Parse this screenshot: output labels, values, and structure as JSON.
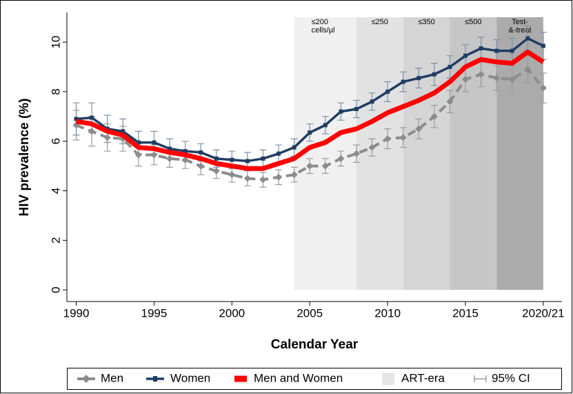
{
  "chart_data": {
    "type": "line",
    "x_label": "Calendar Year",
    "y_label": "HIV prevalence (%)",
    "x": [
      1990,
      1991,
      1992,
      1993,
      1994,
      1995,
      1996,
      1997,
      1998,
      1999,
      2000,
      2001,
      2002,
      2003,
      2004,
      2005,
      2006,
      2007,
      2008,
      2009,
      2010,
      2011,
      2012,
      2013,
      2014,
      2015,
      2016,
      2017,
      2018,
      2019,
      2020
    ],
    "series": [
      {
        "name": "Men",
        "color": "#8c8c8c",
        "style": "dashed",
        "values": [
          6.65,
          6.4,
          6.15,
          6.1,
          5.45,
          5.45,
          5.3,
          5.25,
          5.0,
          4.8,
          4.65,
          4.5,
          4.45,
          4.55,
          4.65,
          5.0,
          5.0,
          5.3,
          5.5,
          5.75,
          6.1,
          6.15,
          6.5,
          7.0,
          7.6,
          8.5,
          8.7,
          8.55,
          8.5,
          8.9,
          8.15
        ],
        "errors": [
          0.6,
          0.6,
          0.55,
          0.5,
          0.45,
          0.4,
          0.35,
          0.35,
          0.35,
          0.3,
          0.3,
          0.3,
          0.3,
          0.3,
          0.3,
          0.3,
          0.3,
          0.3,
          0.35,
          0.35,
          0.4,
          0.4,
          0.4,
          0.45,
          0.45,
          0.5,
          0.5,
          0.5,
          0.55,
          0.55,
          0.6
        ]
      },
      {
        "name": "Women",
        "color": "#1f3d63",
        "style": "solid",
        "values": [
          6.9,
          6.95,
          6.5,
          6.4,
          5.95,
          5.95,
          5.7,
          5.6,
          5.55,
          5.3,
          5.25,
          5.2,
          5.3,
          5.5,
          5.75,
          6.35,
          6.65,
          7.2,
          7.3,
          7.6,
          8.0,
          8.4,
          8.55,
          8.7,
          9.0,
          9.45,
          9.75,
          9.65,
          9.65,
          10.15,
          9.85
        ],
        "errors": [
          0.65,
          0.6,
          0.55,
          0.5,
          0.45,
          0.45,
          0.4,
          0.4,
          0.35,
          0.35,
          0.35,
          0.35,
          0.35,
          0.35,
          0.35,
          0.35,
          0.35,
          0.35,
          0.35,
          0.35,
          0.4,
          0.4,
          0.4,
          0.45,
          0.45,
          0.45,
          0.45,
          0.45,
          0.5,
          0.5,
          0.55
        ]
      },
      {
        "name": "Men and Women",
        "color": "#ff0000",
        "style": "thick",
        "values": [
          6.8,
          6.7,
          6.4,
          6.25,
          5.75,
          5.7,
          5.55,
          5.45,
          5.3,
          5.1,
          5.0,
          4.9,
          4.9,
          5.1,
          5.3,
          5.75,
          5.95,
          6.35,
          6.5,
          6.8,
          7.15,
          7.4,
          7.65,
          7.95,
          8.4,
          9.0,
          9.3,
          9.2,
          9.15,
          9.6,
          9.2
        ]
      }
    ],
    "regions": [
      {
        "start": 2004,
        "end": 2008,
        "label": [
          "≤200",
          "cells/µl"
        ],
        "color": "#f0f0f0"
      },
      {
        "start": 2008,
        "end": 2011,
        "label": [
          "≤250"
        ],
        "color": "#e2e2e2"
      },
      {
        "start": 2011,
        "end": 2014,
        "label": [
          "≤350"
        ],
        "color": "#d5d5d5"
      },
      {
        "start": 2014,
        "end": 2017,
        "label": [
          "≤500"
        ],
        "color": "#c6c6c6"
      },
      {
        "start": 2017,
        "end": 2020,
        "label": [
          "Test-",
          "&-treat"
        ],
        "color": "#ababab"
      }
    ],
    "era_legend": "ART-era",
    "ci_legend": "95% CI",
    "xlim": [
      1989.4,
      2021.2
    ],
    "ylim": [
      -0.47,
      11.2
    ],
    "xticks": [
      1990,
      1995,
      2000,
      2005,
      2010,
      2015,
      {
        "value": 2020,
        "label": "2020/21"
      }
    ],
    "yticks": [
      0,
      2,
      4,
      6,
      8,
      10
    ]
  }
}
